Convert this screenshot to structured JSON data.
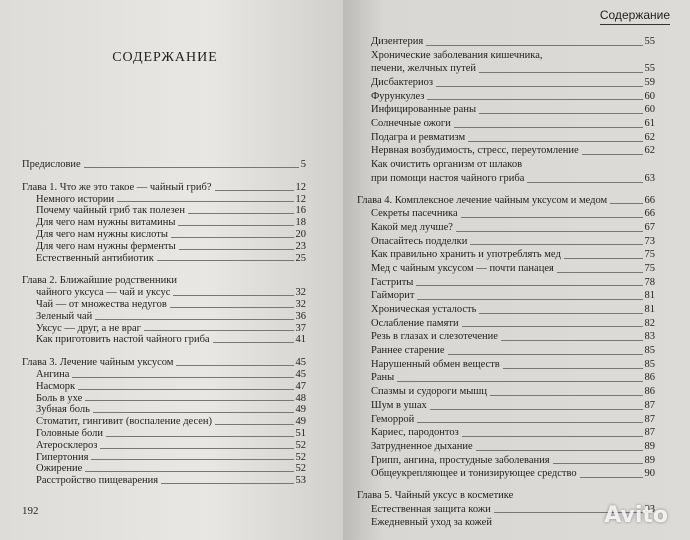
{
  "left_page": {
    "title": "СОДЕРЖАНИЕ",
    "preface": {
      "text": "Предисловие",
      "page": "5"
    },
    "chapters": [
      {
        "title": "Глава 1. Что же это такое — чайный гриб?",
        "page": "12",
        "sections": [
          {
            "text": "Немного истории",
            "page": "12"
          },
          {
            "text": "Почему чайный гриб так полезен",
            "page": "16"
          },
          {
            "text": "Для чего нам нужны витамины",
            "page": "18"
          },
          {
            "text": "Для чего нам нужны кислоты",
            "page": "20"
          },
          {
            "text": "Для чего нам нужны ферменты",
            "page": "23"
          },
          {
            "text": "Естественный антибиотик",
            "page": "25"
          }
        ]
      },
      {
        "title": "Глава 2. Ближайшие родственники",
        "sections": [
          {
            "text": "чайного уксуса — чай и уксус",
            "page": "32"
          },
          {
            "text": "Чай — от множества недугов",
            "page": "32"
          },
          {
            "text": "Зеленый чай",
            "page": "36"
          },
          {
            "text": "Уксус — друг, а не враг",
            "page": "37"
          },
          {
            "text": "Как приготовить настой чайного гриба",
            "page": "41"
          }
        ]
      },
      {
        "title": "Глава 3. Лечение чайным уксусом",
        "page": "45",
        "sections": [
          {
            "text": "Ангина",
            "page": "45"
          },
          {
            "text": "Насморк",
            "page": "47"
          },
          {
            "text": "Боль в ухе",
            "page": "48"
          },
          {
            "text": "Зубная боль",
            "page": "49"
          },
          {
            "text": "Стоматит, гингивит (воспаление десен)",
            "page": "49"
          },
          {
            "text": "Головные боли",
            "page": "51"
          },
          {
            "text": "Атеросклероз",
            "page": "52"
          },
          {
            "text": "Гипертония",
            "page": "52"
          },
          {
            "text": "Ожирение",
            "page": "52"
          },
          {
            "text": "Расстройство пищеварения",
            "page": "53"
          }
        ]
      }
    ],
    "folio": "192"
  },
  "right_page": {
    "header": "Содержание",
    "continued_sections": [
      {
        "text": "Дизентерия",
        "page": "55"
      },
      {
        "text": "Хронические заболевания кишечника,"
      },
      {
        "text": "печени, желчных путей",
        "page": "55"
      },
      {
        "text": "Дисбактериоз",
        "page": "59"
      },
      {
        "text": "Фурункулез",
        "page": "60"
      },
      {
        "text": "Инфицированные раны",
        "page": "60"
      },
      {
        "text": "Солнечные ожоги",
        "page": "61"
      },
      {
        "text": "Подагра и ревматизм",
        "page": "62"
      },
      {
        "text": "Нервная возбудимость, стресс, переутомление",
        "page": "62"
      },
      {
        "text": "Как очистить организм от шлаков"
      },
      {
        "text": "при помощи настоя чайного гриба",
        "page": "63"
      }
    ],
    "chapters": [
      {
        "title": "Глава 4. Комплексное лечение чайным уксусом и медом",
        "page": "66",
        "sections": [
          {
            "text": "Секреты пасечника",
            "page": "66"
          },
          {
            "text": "Какой мед лучше?",
            "page": "67"
          },
          {
            "text": "Опасайтесь подделки",
            "page": "73"
          },
          {
            "text": "Как правильно хранить и употреблять мед",
            "page": "75"
          },
          {
            "text": "Мед с чайным уксусом — почти панацея",
            "page": "75"
          },
          {
            "text": "Гастриты",
            "page": "78"
          },
          {
            "text": "Гайморит",
            "page": "81"
          },
          {
            "text": "Хроническая усталость",
            "page": "81"
          },
          {
            "text": "Ослабление памяти",
            "page": "82"
          },
          {
            "text": "Резь в глазах и слезотечение",
            "page": "83"
          },
          {
            "text": "Раннее старение",
            "page": "85"
          },
          {
            "text": "Нарушенный обмен веществ",
            "page": "85"
          },
          {
            "text": "Раны",
            "page": "86"
          },
          {
            "text": "Спазмы и судороги мышц",
            "page": "86"
          },
          {
            "text": "Шум в ушах",
            "page": "87"
          },
          {
            "text": "Геморрой",
            "page": "87"
          },
          {
            "text": "Кариес, пародонтоз",
            "page": "87"
          },
          {
            "text": "Затрудненное дыхание",
            "page": "89"
          },
          {
            "text": "Грипп, ангина, простудные заболевания",
            "page": "89"
          },
          {
            "text": "Общеукрепляющее и тонизирующее средство",
            "page": "90"
          }
        ]
      },
      {
        "title": "Глава 5. Чайный уксус в косметике",
        "sections": [
          {
            "text": "Естественная защита кожи",
            "page": "93"
          },
          {
            "text": "Ежедневный уход за кожей"
          }
        ]
      }
    ]
  },
  "watermark": "Avito"
}
